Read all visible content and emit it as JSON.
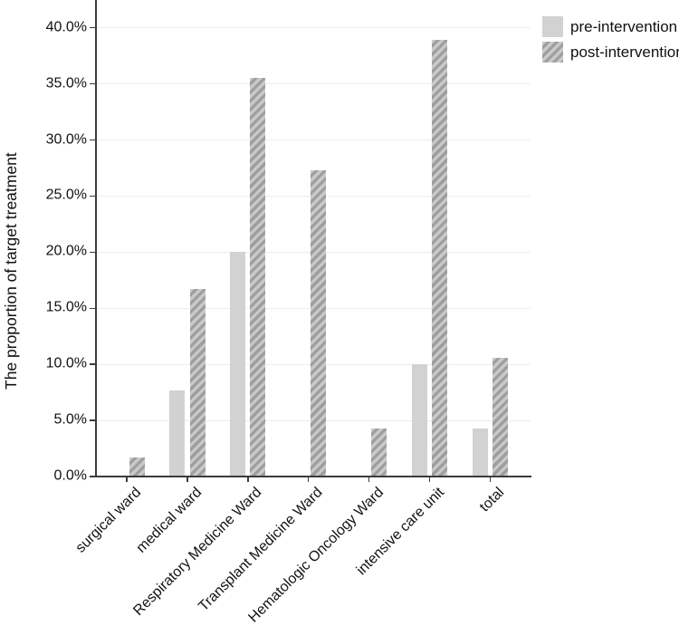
{
  "chart_data": {
    "type": "bar",
    "title": "",
    "xlabel": "",
    "ylabel": "The proportion of target treatment",
    "categories": [
      "surgical ward",
      "medical ward",
      "Respiratory Medicine Ward",
      "Transplant Medicine Ward",
      "Hematologic Oncology Ward",
      "intensive care unit",
      "total"
    ],
    "series": [
      {
        "name": "pre-intervention",
        "style": "solid",
        "values": [
          0,
          7.7,
          20.0,
          0,
          0,
          10.0,
          4.3
        ]
      },
      {
        "name": "post-intervention",
        "style": "hatched",
        "values": [
          1.7,
          16.7,
          35.5,
          27.3,
          4.3,
          38.9,
          10.6
        ]
      }
    ],
    "ylim": [
      0,
      42.5
    ],
    "yticks": [
      0,
      5,
      10,
      15,
      20,
      25,
      30,
      35,
      40
    ],
    "ytick_label_suffix": "%",
    "ytick_decimals": 1,
    "grid": "horizontal",
    "legend_position": "top-right"
  },
  "legend": {
    "items": [
      {
        "label": "pre-intervention",
        "swatch": "solid"
      },
      {
        "label": "post-intervention",
        "swatch": "hatched"
      }
    ]
  },
  "colors": {
    "bar_solid": "#d2d2d2",
    "hatch_light": "#c9c9c9",
    "hatch_dark": "#9e9e9e",
    "axis": "#3b3b3b",
    "gridline": "#ececec",
    "text": "#111111",
    "background": "#ffffff"
  }
}
